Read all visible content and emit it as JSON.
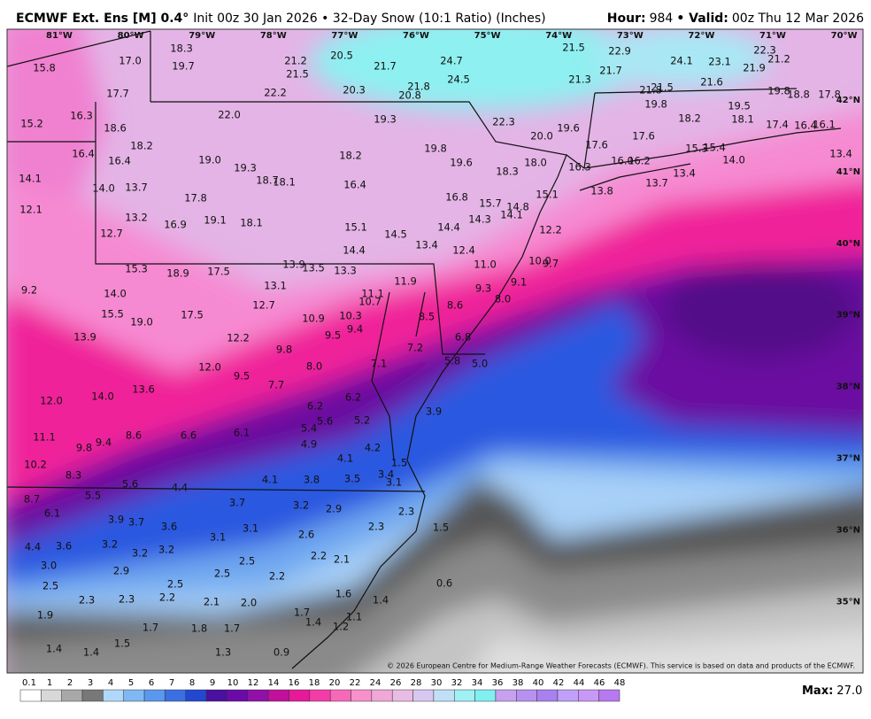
{
  "header": {
    "model": "ECMWF Ext. Ens [M] 0.4°",
    "description": "Init 00z 30 Jan 2026 • 32-Day Snow (10:1 Ratio) (Inches)",
    "hour_label": "Hour:",
    "hour": "984",
    "valid_label": "Valid:",
    "valid": "00z Thu 12 Mar 2026"
  },
  "longitude_labels": [
    "81°W",
    "80°W",
    "79°W",
    "78°W",
    "77°W",
    "76°W",
    "75°W",
    "74°W",
    "73°W",
    "72°W",
    "71°W",
    "70°W"
  ],
  "latitude_labels": [
    "42°N",
    "41°N",
    "40°N",
    "39°N",
    "38°N",
    "37°N",
    "36°N",
    "35°N"
  ],
  "point_values": [
    "18.3",
    "17.0",
    "19.7",
    "15.8",
    "21.2",
    "20.5",
    "21.5",
    "21.7",
    "24.7",
    "24.5",
    "21.5",
    "22.9",
    "24.1",
    "23.1",
    "22.3",
    "21.2",
    "21.9",
    "21.7",
    "21.3",
    "21.5",
    "21.8",
    "21.6",
    "19.8",
    "18.8",
    "17.8",
    "17.7",
    "22.2",
    "20.3",
    "21.8",
    "20.8",
    "16.3",
    "22.0",
    "19.3",
    "22.3",
    "19.8",
    "18.2",
    "19.5",
    "18.1",
    "17.4",
    "16.4",
    "16.1",
    "15.2",
    "18.6",
    "19.6",
    "20.0",
    "18.2",
    "19.8",
    "17.6",
    "17.6",
    "18.2",
    "16.4",
    "16.4",
    "19.0",
    "19.6",
    "18.0",
    "16.3",
    "16.2",
    "16.0",
    "15.3",
    "15.4",
    "14.0",
    "13.4",
    "18.3",
    "19.3",
    "14.1",
    "18.7",
    "18.1",
    "16.4",
    "13.7",
    "13.4",
    "13.7",
    "14.0",
    "17.8",
    "16.8",
    "13.8",
    "15.1",
    "15.7",
    "14.8",
    "12.1",
    "13.2",
    "19.1",
    "16.9",
    "18.1",
    "14.3",
    "14.1",
    "12.7",
    "15.1",
    "14.5",
    "14.4",
    "12.2",
    "14.4",
    "13.4",
    "12.4",
    "15.3",
    "18.9",
    "17.5",
    "13.9",
    "13.5",
    "13.3",
    "11.0",
    "10.0",
    "9.7",
    "13.1",
    "11.9",
    "9.2",
    "14.0",
    "11.1",
    "10.7",
    "9.3",
    "9.1",
    "8.0",
    "12.7",
    "8.6",
    "15.5",
    "17.5",
    "19.0",
    "10.9",
    "10.3",
    "8.5",
    "9.4",
    "9.5",
    "12.2",
    "13.9",
    "6.8",
    "9.8",
    "7.2",
    "8.0",
    "7.1",
    "5.8",
    "5.0",
    "12.0",
    "9.5",
    "7.7",
    "13.6",
    "14.0",
    "12.0",
    "6.2",
    "6.2",
    "5.6",
    "5.2",
    "3.9",
    "5.4",
    "6.6",
    "6.1",
    "8.6",
    "11.1",
    "4.9",
    "9.4",
    "9.8",
    "4.2",
    "4.1",
    "1.5",
    "10.2",
    "3.4",
    "8.3",
    "4.1",
    "3.8",
    "3.5",
    "3.1",
    "5.6",
    "4.4",
    "5.5",
    "8.7",
    "3.7",
    "3.2",
    "2.9",
    "6.1",
    "2.3",
    "3.9",
    "3.7",
    "3.6",
    "3.1",
    "3.1",
    "2.3",
    "1.5",
    "2.6",
    "3.2",
    "4.4",
    "3.6",
    "3.2",
    "3.2",
    "2.2",
    "2.1",
    "2.5",
    "3.0",
    "2.9",
    "2.5",
    "2.2",
    "0.6",
    "2.5",
    "2.5",
    "1.6",
    "2.3",
    "2.3",
    "2.2",
    "2.1",
    "2.0",
    "1.4",
    "1.9",
    "1.7",
    "1.1",
    "1.4",
    "1.7",
    "1.8",
    "1.7",
    "1.2",
    "1.5",
    "1.4",
    "1.4",
    "1.3",
    "0.9"
  ],
  "attribution": "© 2026 European Centre for Medium-Range Weather Forecasts (ECMWF). This service is based on data and products of the ECMWF.",
  "colorbar": {
    "labels": [
      "0.1",
      "1",
      "2",
      "3",
      "4",
      "5",
      "6",
      "7",
      "8",
      "9",
      "10",
      "12",
      "14",
      "16",
      "18",
      "20",
      "22",
      "24",
      "26",
      "28",
      "30",
      "32",
      "34",
      "36",
      "38",
      "40",
      "42",
      "44",
      "46",
      "48"
    ],
    "colors": [
      "#ffffff",
      "#d8d8d8",
      "#a8a8a8",
      "#787878",
      "#b0d8fa",
      "#80b8f4",
      "#5a98ee",
      "#3a70e4",
      "#2248d0",
      "#4a10a0",
      "#6a0aa8",
      "#9010a8",
      "#c0109c",
      "#e8189a",
      "#f43ca8",
      "#f868b8",
      "#f890cc",
      "#f0a8d8",
      "#e8bce4",
      "#d8c8f0",
      "#c0e0f8",
      "#a0f0f4",
      "#80f0f0",
      "#c8a0f0",
      "#b890f0",
      "#a880f0",
      "#c0a0f8",
      "#c898f8",
      "#b878f0"
    ]
  },
  "max_label": "Max:",
  "max_value": "27.0"
}
